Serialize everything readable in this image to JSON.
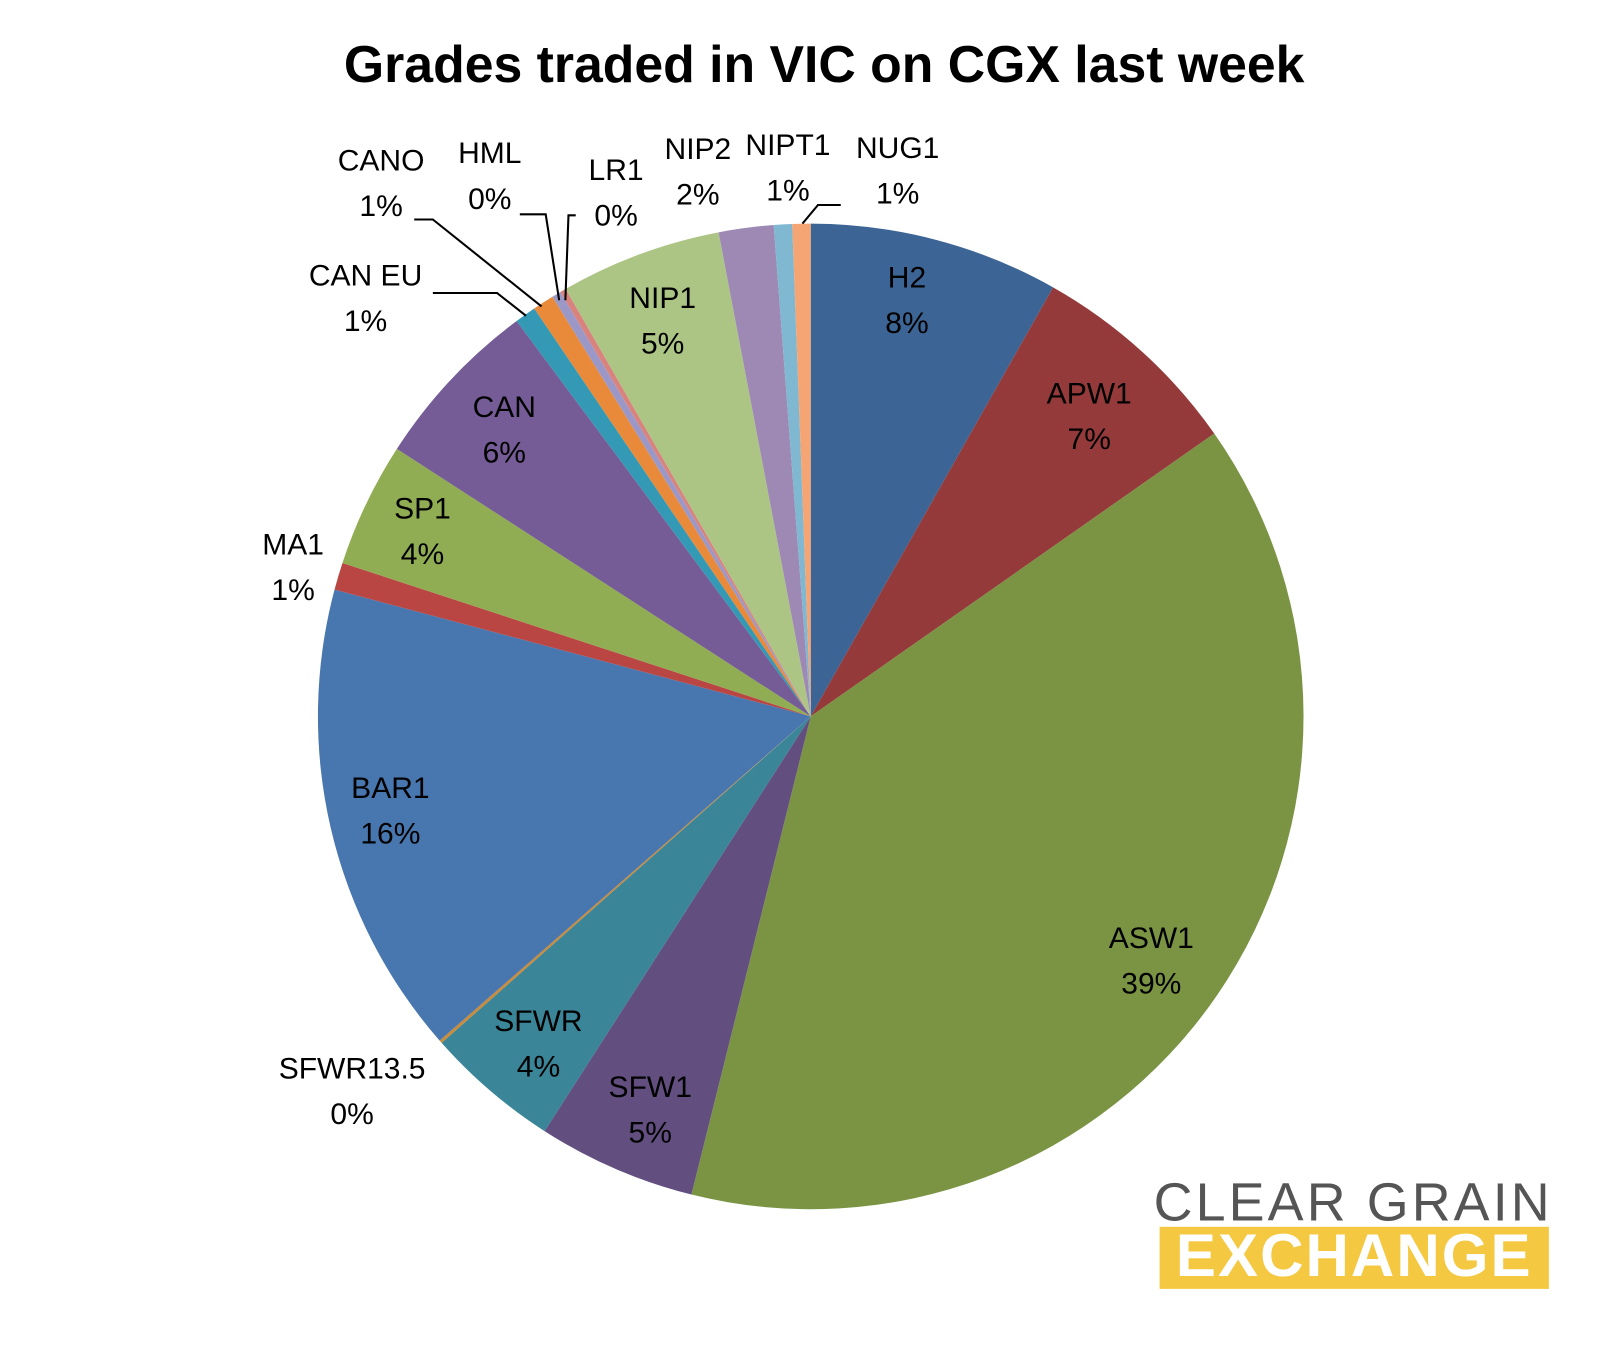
{
  "chart_data": {
    "type": "pie",
    "title": "Grades traded in VIC on CGX last week",
    "categories": [
      "H2",
      "APW1",
      "ASW1",
      "SFW1",
      "SFWR",
      "SFWR13.5",
      "BAR1",
      "MA1",
      "SP1",
      "CAN",
      "CAN EU",
      "CANO",
      "HML",
      "LR1",
      "NIP1",
      "NIP2",
      "NIPT1",
      "NUG1"
    ],
    "values": [
      8.2,
      7.1,
      38.7,
      5.2,
      4.4,
      0.1,
      15.6,
      0.9,
      4.1,
      5.7,
      0.7,
      0.7,
      0.3,
      0.2,
      5.3,
      1.8,
      0.6,
      0.6
    ],
    "value_labels": [
      "8%",
      "7%",
      "39%",
      "5%",
      "4%",
      "0%",
      "16%",
      "1%",
      "4%",
      "6%",
      "1%",
      "1%",
      "0%",
      "0%",
      "5%",
      "2%",
      "1%",
      "1%"
    ],
    "colors": [
      "#3c6494",
      "#953a3a",
      "#7a9444",
      "#624f80",
      "#3a8597",
      "#c98b3c",
      "#4876ae",
      "#b94643",
      "#90ad53",
      "#755c96",
      "#3399b4",
      "#e88a3a",
      "#9b98c8",
      "#d9837e",
      "#adc584",
      "#9d89b4",
      "#7fb8d0",
      "#f5a574"
    ]
  },
  "logo": {
    "line1": "CLEAR GRAIN",
    "line2": "EXCHANGE"
  }
}
